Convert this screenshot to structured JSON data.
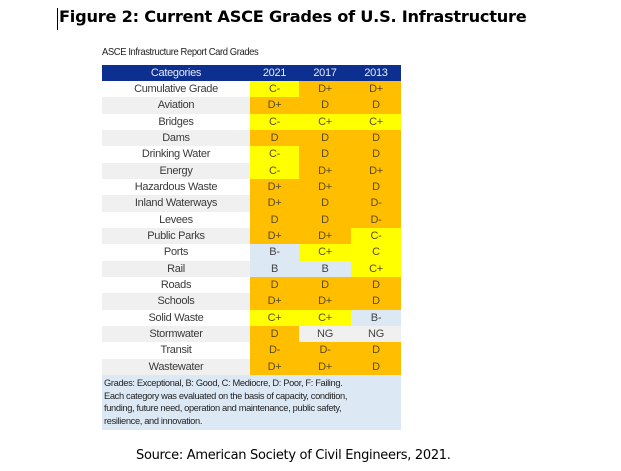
{
  "figure_title": "Figure 2: Current ASCE Grades of U.S. Infrastructure",
  "table_caption": "ASCE Infrastructure Report Card Grades",
  "colors": {
    "header_bg": "#0d2f8f",
    "D_range": "#ffbf00",
    "C_range": "#ffff00",
    "B_range": "#dce9f5",
    "NG": "#f0f0f0",
    "note_bg": "#dce9f5"
  },
  "columns": [
    "Categories",
    "2021",
    "2017",
    "2013"
  ],
  "rows": [
    {
      "category": "Cumulative Grade",
      "grades": [
        "C-",
        "D+",
        "D+"
      ]
    },
    {
      "category": "Aviation",
      "grades": [
        "D+",
        "D",
        "D"
      ]
    },
    {
      "category": "Bridges",
      "grades": [
        "C-",
        "C+",
        "C+"
      ]
    },
    {
      "category": "Dams",
      "grades": [
        "D",
        "D",
        "D"
      ]
    },
    {
      "category": "Drinking Water",
      "grades": [
        "C-",
        "D",
        "D"
      ]
    },
    {
      "category": "Energy",
      "grades": [
        "C-",
        "D+",
        "D+"
      ]
    },
    {
      "category": "Hazardous Waste",
      "grades": [
        "D+",
        "D+",
        "D"
      ]
    },
    {
      "category": "Inland Waterways",
      "grades": [
        "D+",
        "D",
        "D-"
      ]
    },
    {
      "category": "Levees",
      "grades": [
        "D",
        "D",
        "D-"
      ]
    },
    {
      "category": "Public Parks",
      "grades": [
        "D+",
        "D+",
        "C-"
      ]
    },
    {
      "category": "Ports",
      "grades": [
        "B-",
        "C+",
        "C"
      ]
    },
    {
      "category": "Rail",
      "grades": [
        "B",
        "B",
        "C+"
      ]
    },
    {
      "category": "Roads",
      "grades": [
        "D",
        "D",
        "D"
      ]
    },
    {
      "category": "Schools",
      "grades": [
        "D+",
        "D+",
        "D"
      ]
    },
    {
      "category": "Solid Waste",
      "grades": [
        "C+",
        "C+",
        "B-"
      ]
    },
    {
      "category": "Stormwater",
      "grades": [
        "D",
        "NG",
        "NG"
      ]
    },
    {
      "category": "Transit",
      "grades": [
        "D-",
        "D-",
        "D"
      ]
    },
    {
      "category": "Wastewater",
      "grades": [
        "D+",
        "D+",
        "D"
      ]
    }
  ],
  "note_lines": [
    "Grades: Exceptional, B: Good, C: Mediocre, D: Poor, F: Failing.",
    "Each category was evaluated on the basis of capacity, condition,",
    "funding, future need, operation and maintenance, public safety,",
    "resilience, and innovation."
  ],
  "source": "Source: American Society of Civil Engineers, 2021."
}
